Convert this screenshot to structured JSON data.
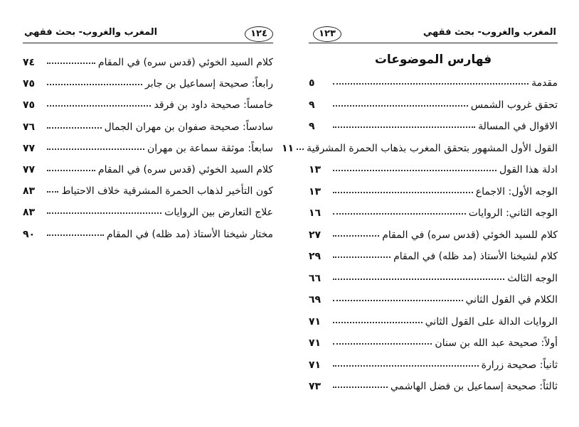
{
  "left_page": {
    "header": {
      "title": "المغرب والغروب- بحث فقهي",
      "page_number": "١٢٤"
    },
    "entries": [
      {
        "title": "كلام السيد الخوئي (قدس سره) في المقام",
        "page": "٧٤"
      },
      {
        "title": "رابعاً: صحيحة إسماعيل بن جابر",
        "page": "٧٥"
      },
      {
        "title": "خامساً: صحيحة داود بن فرقد",
        "page": "٧٥"
      },
      {
        "title": "سادساً: صحيحة صفوان بن مهران الجمال",
        "page": "٧٦"
      },
      {
        "title": "سابعاً: موثقة سماعة بن مهران",
        "page": "٧٧"
      },
      {
        "title": "كلام السيد الخوئي (قدس سره) في المقام",
        "page": "٧٧"
      },
      {
        "title": "كون التأخير لذهاب الحمرة المشرقية خلاف الاحتياط",
        "page": "٨٣"
      },
      {
        "title": "علاج التعارض بين الروايات",
        "page": "٨٣"
      },
      {
        "title": "مختار شيخنا الأستاذ (مد ظله) في المقام",
        "page": "٩٠"
      }
    ]
  },
  "right_page": {
    "header": {
      "title": "المغرب والغروب- بحث فقهي",
      "page_number": "١٢٣"
    },
    "section_title": "فهارس الموضوعات",
    "entries": [
      {
        "title": "مقدمة",
        "page": "٥"
      },
      {
        "title": "تحقق غروب الشمس",
        "page": "٩"
      },
      {
        "title": "الاقوال في المسالة",
        "page": "٩"
      },
      {
        "title": "القول الأول المشهور بتحقق المغرب بذهاب الحمرة المشرقية",
        "page": "١١"
      },
      {
        "title": "ادلة هذا القول",
        "page": "١٣"
      },
      {
        "title": "الوجه الأول: الاجماع",
        "page": "١٣"
      },
      {
        "title": "الوجه الثاني: الروايات",
        "page": "١٦"
      },
      {
        "title": "كلام للسيد الخوئي (قدس سره) في المقام",
        "page": "٢٧"
      },
      {
        "title": "كلام لشيخنا الأستاذ (مد ظله) في المقام",
        "page": "٢٩"
      },
      {
        "title": "الوجه الثالث",
        "page": "٦٦"
      },
      {
        "title": "الكلام في القول الثاني",
        "page": "٦٩"
      },
      {
        "title": "الروايات الدالة على القول الثاني",
        "page": "٧١"
      },
      {
        "title": "أولاً: صحيحة عبد الله بن سنان",
        "page": "٧١"
      },
      {
        "title": "ثانياً: صحيحة زرارة",
        "page": "٧١"
      },
      {
        "title": "ثالثاً: صحيحة إسماعيل بن فضل الهاشمي",
        "page": "٧٣"
      }
    ]
  }
}
